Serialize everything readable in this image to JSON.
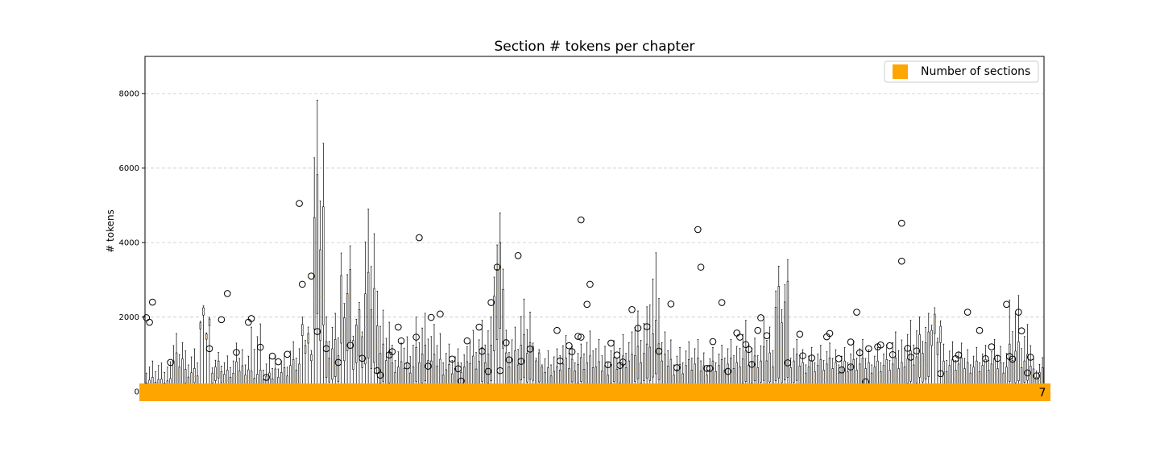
{
  "chart_data": {
    "type": "box",
    "title": "Section # tokens per chapter",
    "xlabel": "",
    "ylabel": "# tokens",
    "ylim": [
      0,
      9000
    ],
    "yticks": [
      0,
      2000,
      4000,
      6000,
      8000
    ],
    "grid": "y-dashed",
    "legend": {
      "placement": "top-right",
      "entries": [
        {
          "label": "Number of sections",
          "color": "#FFA500"
        }
      ]
    },
    "count_bar_color": "#FFA500",
    "count_label_last": "7",
    "box_stats": [
      {
        "q1": 80,
        "median": 200,
        "q3": 420,
        "whishi": 900,
        "outliers": [
          1980,
          1860,
          2400
        ]
      },
      {
        "q1": 60,
        "median": 150,
        "q3": 350,
        "whishi": 800,
        "outliers": []
      },
      {
        "q1": 200,
        "median": 600,
        "q3": 1200,
        "whishi": 1800,
        "outliers": [
          780
        ]
      },
      {
        "q1": 250,
        "median": 420,
        "q3": 650,
        "whishi": 1200,
        "outliers": []
      },
      {
        "q1": 2050,
        "median": 2150,
        "q3": 2250,
        "whishi": 2300,
        "outliers": []
      },
      {
        "q1": 400,
        "median": 600,
        "q3": 900,
        "whishi": 1150,
        "outliers": [
          1150
        ]
      },
      {
        "q1": 100,
        "median": 300,
        "q3": 600,
        "whishi": 1000,
        "outliers": [
          1930,
          2630
        ]
      },
      {
        "q1": 200,
        "median": 400,
        "q3": 800,
        "whishi": 1300,
        "outliers": [
          1050
        ]
      },
      {
        "q1": 100,
        "median": 250,
        "q3": 600,
        "whishi": 1900,
        "outliers": [
          1860,
          1960
        ]
      },
      {
        "q1": 80,
        "median": 200,
        "q3": 500,
        "whishi": 900,
        "outliers": [
          1190,
          380
        ]
      },
      {
        "q1": 100,
        "median": 300,
        "q3": 700,
        "whishi": 1100,
        "outliers": [
          950,
          800
        ]
      },
      {
        "q1": 200,
        "median": 450,
        "q3": 900,
        "whishi": 1400,
        "outliers": [
          1000
        ]
      },
      {
        "q1": 1500,
        "median": 1650,
        "q3": 1800,
        "whishi": 2000,
        "outliers": [
          5050,
          2880
        ]
      },
      {
        "q1": 2300,
        "median": 4300,
        "q3": 6400,
        "whishi": 8600,
        "outliers": [
          3100,
          1610
        ]
      },
      {
        "q1": 400,
        "median": 800,
        "q3": 1400,
        "whishi": 2100,
        "outliers": [
          1150
        ]
      },
      {
        "q1": 1500,
        "median": 2800,
        "q3": 3600,
        "whishi": 4300,
        "outliers": [
          780
        ]
      },
      {
        "q1": 1000,
        "median": 1600,
        "q3": 2300,
        "whishi": 2500,
        "outliers": [
          1240
        ]
      },
      {
        "q1": 900,
        "median": 2100,
        "q3": 3200,
        "whishi": 4900,
        "outliers": [
          890
        ]
      },
      {
        "q1": 300,
        "median": 700,
        "q3": 1400,
        "whishi": 2400,
        "outliers": [
          560,
          440
        ]
      },
      {
        "q1": 150,
        "median": 400,
        "q3": 800,
        "whishi": 1300,
        "outliers": [
          980,
          1070,
          1730
        ]
      },
      {
        "q1": 200,
        "median": 500,
        "q3": 900,
        "whishi": 1700,
        "outliers": [
          1360,
          690
        ]
      },
      {
        "q1": 300,
        "median": 700,
        "q3": 1300,
        "whishi": 2200,
        "outliers": [
          1460,
          4130
        ]
      },
      {
        "q1": 200,
        "median": 500,
        "q3": 1000,
        "whishi": 1800,
        "outliers": [
          680,
          1990
        ]
      },
      {
        "q1": 100,
        "median": 400,
        "q3": 800,
        "whishi": 1400,
        "outliers": [
          2080
        ]
      },
      {
        "q1": 100,
        "median": 300,
        "q3": 800,
        "whishi": 1200,
        "outliers": [
          870,
          610,
          280
        ]
      },
      {
        "q1": 200,
        "median": 500,
        "q3": 1100,
        "whishi": 1900,
        "outliers": [
          1360
        ]
      },
      {
        "q1": 300,
        "median": 700,
        "q3": 1300,
        "whishi": 2100,
        "outliers": [
          1730,
          1080,
          540
        ]
      },
      {
        "q1": 1700,
        "median": 3300,
        "q3": 4000,
        "whishi": 4800,
        "outliers": [
          2390,
          3340,
          560
        ]
      },
      {
        "q1": 200,
        "median": 600,
        "q3": 1200,
        "whishi": 1900,
        "outliers": [
          1310,
          850
        ]
      },
      {
        "q1": 400,
        "median": 900,
        "q3": 1600,
        "whishi": 2600,
        "outliers": [
          3650,
          810
        ]
      },
      {
        "q1": 300,
        "median": 700,
        "q3": 1200,
        "whishi": 1300,
        "outliers": [
          1140
        ]
      },
      {
        "q1": 100,
        "median": 300,
        "q3": 700,
        "whishi": 1200,
        "outliers": []
      },
      {
        "q1": 200,
        "median": 500,
        "q3": 900,
        "whishi": 1500,
        "outliers": [
          1640,
          820
        ]
      },
      {
        "q1": 300,
        "median": 600,
        "q3": 1000,
        "whishi": 1400,
        "outliers": [
          1230,
          1070,
          1480
        ]
      },
      {
        "q1": 200,
        "median": 500,
        "q3": 1000,
        "whishi": 1700,
        "outliers": [
          4610,
          2340,
          2880,
          1460
        ]
      },
      {
        "q1": 200,
        "median": 400,
        "q3": 800,
        "whishi": 1400,
        "outliers": []
      },
      {
        "q1": 300,
        "median": 600,
        "q3": 1000,
        "whishi": 1500,
        "outliers": [
          720,
          1300,
          980
        ]
      },
      {
        "q1": 200,
        "median": 500,
        "q3": 1000,
        "whishi": 1600,
        "outliers": [
          700,
          790
        ]
      },
      {
        "q1": 400,
        "median": 900,
        "q3": 1400,
        "whishi": 2500,
        "outliers": [
          2200,
          1700
        ]
      },
      {
        "q1": 500,
        "median": 1200,
        "q3": 2000,
        "whishi": 3900,
        "outliers": [
          1740
        ]
      },
      {
        "q1": 200,
        "median": 500,
        "q3": 1000,
        "whishi": 1600,
        "outliers": [
          1080
        ]
      },
      {
        "q1": 100,
        "median": 400,
        "q3": 800,
        "whishi": 1300,
        "outliers": [
          2350,
          640
        ]
      },
      {
        "q1": 200,
        "median": 500,
        "q3": 900,
        "whishi": 1400,
        "outliers": []
      },
      {
        "q1": 200,
        "median": 400,
        "q3": 800,
        "whishi": 1200,
        "outliers": [
          4350,
          3340,
          620
        ]
      },
      {
        "q1": 200,
        "median": 500,
        "q3": 900,
        "whishi": 1300,
        "outliers": [
          620,
          1340
        ]
      },
      {
        "q1": 200,
        "median": 500,
        "q3": 900,
        "whishi": 1400,
        "outliers": [
          2390,
          540
        ]
      },
      {
        "q1": 300,
        "median": 700,
        "q3": 1200,
        "whishi": 2100,
        "outliers": [
          1570,
          1460,
          1260
        ]
      },
      {
        "q1": 300,
        "median": 600,
        "q3": 1000,
        "whishi": 1500,
        "outliers": [
          1130,
          730,
          1640
        ]
      },
      {
        "q1": 300,
        "median": 700,
        "q3": 1200,
        "whishi": 2000,
        "outliers": [
          1980,
          1500
        ]
      },
      {
        "q1": 400,
        "median": 1200,
        "q3": 3100,
        "whishi": 3700,
        "outliers": []
      },
      {
        "q1": 300,
        "median": 600,
        "q3": 1000,
        "whishi": 1400,
        "outliers": [
          770
        ]
      },
      {
        "q1": 200,
        "median": 500,
        "q3": 900,
        "whishi": 1300,
        "outliers": [
          1540,
          960
        ]
      },
      {
        "q1": 200,
        "median": 500,
        "q3": 900,
        "whishi": 1300,
        "outliers": [
          900
        ]
      },
      {
        "q1": 200,
        "median": 500,
        "q3": 900,
        "whishi": 1300,
        "outliers": [
          1470,
          1560
        ]
      },
      {
        "q1": 200,
        "median": 500,
        "q3": 900,
        "whishi": 1300,
        "outliers": [
          880,
          580
        ]
      },
      {
        "q1": 200,
        "median": 500,
        "q3": 900,
        "whishi": 1400,
        "outliers": [
          1330,
          2130,
          1040,
          660
        ]
      },
      {
        "q1": 200,
        "median": 500,
        "q3": 900,
        "whishi": 1300,
        "outliers": [
          260,
          1150
        ]
      },
      {
        "q1": 200,
        "median": 500,
        "q3": 900,
        "whishi": 1300,
        "outliers": [
          1200,
          1250
        ]
      },
      {
        "q1": 200,
        "median": 500,
        "q3": 900,
        "whishi": 1600,
        "outliers": [
          1230,
          990
        ]
      },
      {
        "q1": 300,
        "median": 700,
        "q3": 1200,
        "whishi": 2100,
        "outliers": [
          4520,
          1160,
          920,
          3500
        ]
      },
      {
        "q1": 400,
        "median": 800,
        "q3": 1600,
        "whishi": 2100,
        "outliers": [
          1090
        ]
      },
      {
        "q1": 1800,
        "median": 2200,
        "q3": 2400,
        "whishi": 2600,
        "outliers": []
      },
      {
        "q1": 200,
        "median": 500,
        "q3": 900,
        "whishi": 1400,
        "outliers": [
          480
        ]
      },
      {
        "q1": 200,
        "median": 500,
        "q3": 900,
        "whishi": 1300,
        "outliers": [
          880,
          980
        ]
      },
      {
        "q1": 200,
        "median": 500,
        "q3": 900,
        "whishi": 1300,
        "outliers": [
          2130
        ]
      },
      {
        "q1": 200,
        "median": 500,
        "q3": 900,
        "whishi": 1300,
        "outliers": [
          1640,
          880
        ]
      },
      {
        "q1": 200,
        "median": 500,
        "q3": 900,
        "whishi": 1400,
        "outliers": [
          1200,
          890
        ]
      },
      {
        "q1": 300,
        "median": 700,
        "q3": 1400,
        "whishi": 2700,
        "outliers": [
          2340,
          940,
          870
        ]
      },
      {
        "q1": 300,
        "median": 600,
        "q3": 1000,
        "whishi": 1800,
        "outliers": [
          2130,
          1630,
          500
        ]
      },
      {
        "q1": 200,
        "median": 400,
        "q3": 700,
        "whishi": 1000,
        "outliers": [
          920,
          420
        ]
      }
    ]
  }
}
